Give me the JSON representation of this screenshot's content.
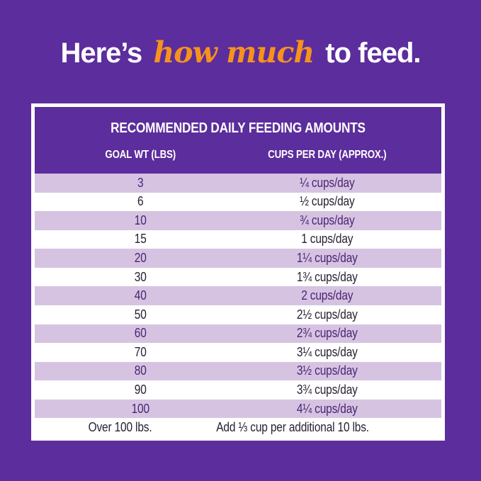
{
  "colors": {
    "background": "#5C2D9C",
    "accent_orange": "#F6921E",
    "row_alt": "#D6C3E1",
    "row_text_alt": "#4A2575",
    "row_text": "#2B2133",
    "card_border": "#FFFFFF"
  },
  "title": {
    "prefix": "Here’s",
    "highlight": "how much",
    "suffix": "to feed."
  },
  "table": {
    "title": "RECOMMENDED DAILY FEEDING AMOUNTS",
    "columns": [
      "GOAL WT (LBS)",
      "CUPS PER DAY (APPROX.)"
    ],
    "rows": [
      {
        "goal_wt": "3",
        "cups_per_day": "¼ cups/day"
      },
      {
        "goal_wt": "6",
        "cups_per_day": "½ cups/day"
      },
      {
        "goal_wt": "10",
        "cups_per_day": "¾ cups/day"
      },
      {
        "goal_wt": "15",
        "cups_per_day": "1 cups/day"
      },
      {
        "goal_wt": "20",
        "cups_per_day": "1¼ cups/day"
      },
      {
        "goal_wt": "30",
        "cups_per_day": "1¾ cups/day"
      },
      {
        "goal_wt": "40",
        "cups_per_day": "2 cups/day"
      },
      {
        "goal_wt": "50",
        "cups_per_day": "2½ cups/day"
      },
      {
        "goal_wt": "60",
        "cups_per_day": "2¾ cups/day"
      },
      {
        "goal_wt": "70",
        "cups_per_day": "3¼ cups/day"
      },
      {
        "goal_wt": "80",
        "cups_per_day": "3½ cups/day"
      },
      {
        "goal_wt": "90",
        "cups_per_day": "3¾ cups/day"
      },
      {
        "goal_wt": "100",
        "cups_per_day": "4¼ cups/day"
      },
      {
        "goal_wt": "Over 100 lbs.",
        "cups_per_day": "Add ⅓ cup per additional 10 lbs."
      }
    ]
  }
}
